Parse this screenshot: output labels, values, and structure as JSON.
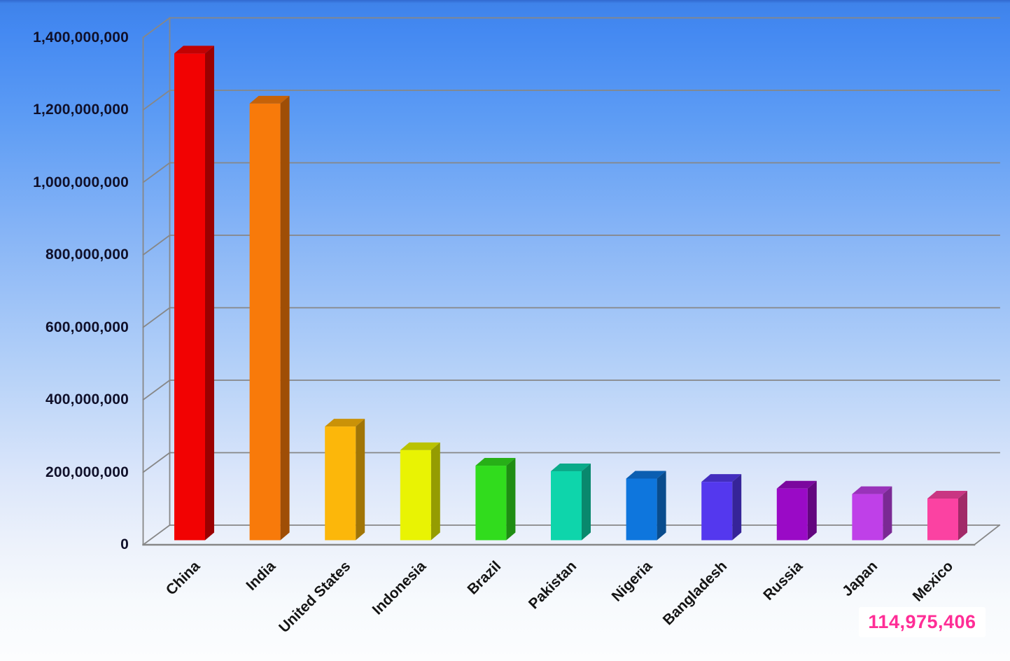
{
  "colors": {
    "background_top": "#4489f2",
    "background_bottom": "#fcfdfe",
    "gridline": "#878787",
    "y_label_text": "#10102a",
    "x_label_text": "#141414",
    "callout_text": "#ff2d96",
    "callout_bg": "#ffffff"
  },
  "chart_data": {
    "type": "bar",
    "projection": "3d",
    "title": "",
    "xlabel": "",
    "ylabel": "",
    "categories": [
      "China",
      "India",
      "United States",
      "Indonesia",
      "Brazil",
      "Pakistan",
      "Nigeria",
      "Bangladesh",
      "Russia",
      "Japan",
      "Mexico"
    ],
    "values": [
      1343239923,
      1205073612,
      313847465,
      248645008,
      205716890,
      190291129,
      170123740,
      161083804,
      142517670,
      127368088,
      114975406
    ],
    "bar_colors": [
      "#f20202",
      "#f87a0a",
      "#fcb70a",
      "#e9f303",
      "#31dc1d",
      "#0ed5ab",
      "#0e76dd",
      "#5438ee",
      "#9a0ac6",
      "#bf40e8",
      "#fb42a2"
    ],
    "ylim": [
      0,
      1400000000
    ],
    "ytick_interval": 200000000,
    "ytick_labels": [
      "0",
      "200,000,000",
      "400,000,000",
      "600,000,000",
      "800,000,000",
      "1,000,000,000",
      "1,200,000,000",
      "1,400,000,000"
    ],
    "grid": true,
    "legend": false
  },
  "callout": {
    "value": "114,975,406"
  }
}
